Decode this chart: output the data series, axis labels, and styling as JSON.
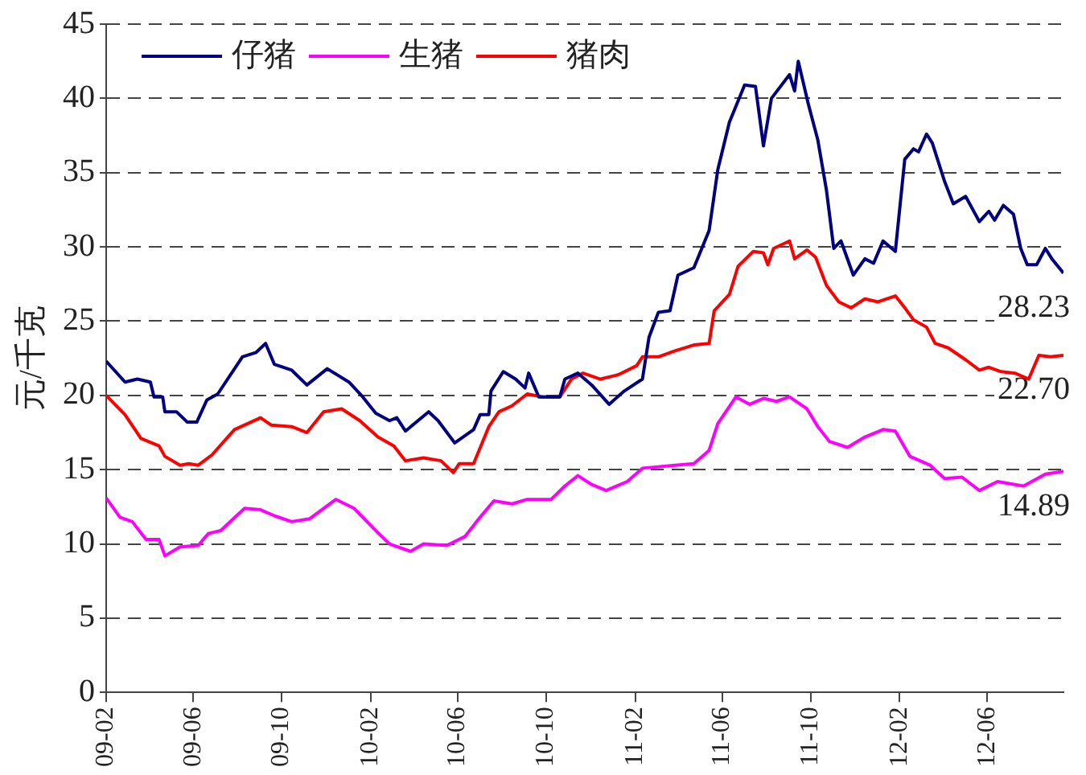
{
  "chart_data": {
    "type": "line",
    "ylabel": "元/千克",
    "xlim": [
      "2009-02-01",
      "2012-09-14"
    ],
    "ylim": [
      0,
      45
    ],
    "yticks": [
      0,
      5,
      10,
      15,
      20,
      25,
      30,
      35,
      40,
      45
    ],
    "xticks": [
      {
        "value": "2009-02",
        "label": "09-02"
      },
      {
        "value": "2009-06",
        "label": "09-06"
      },
      {
        "value": "2009-10",
        "label": "09-10"
      },
      {
        "value": "2010-02",
        "label": "10-02"
      },
      {
        "value": "2010-06",
        "label": "10-06"
      },
      {
        "value": "2010-10",
        "label": "10-10"
      },
      {
        "value": "2011-02",
        "label": "11-02"
      },
      {
        "value": "2011-06",
        "label": "11-06"
      },
      {
        "value": "2011-10",
        "label": "11-10"
      },
      {
        "value": "2012-02",
        "label": "12-02"
      },
      {
        "value": "2012-06",
        "label": "12-06"
      }
    ],
    "grid": "y",
    "legend": "top left",
    "marker": "none",
    "line_style": "solid",
    "series": [
      {
        "name": "仔猪",
        "color": "#000080",
        "x": [
          "2009-02-01",
          "2009-02-27",
          "2009-03-16",
          "2009-04-03",
          "2009-04-08",
          "2009-04-20",
          "2009-04-23",
          "2009-05-09",
          "2009-05-24",
          "2009-06-06",
          "2009-06-20",
          "2009-07-05",
          "2009-08-08",
          "2009-08-27",
          "2009-09-09",
          "2009-09-21",
          "2009-10-15",
          "2009-11-05",
          "2009-12-03",
          "2010-01-02",
          "2010-01-21",
          "2010-02-08",
          "2010-02-27",
          "2010-03-09",
          "2010-03-21",
          "2010-04-22",
          "2010-05-05",
          "2010-05-28",
          "2010-06-23",
          "2010-07-02",
          "2010-07-14",
          "2010-07-17",
          "2010-08-03",
          "2010-08-20",
          "2010-09-02",
          "2010-09-07",
          "2010-09-21",
          "2010-10-20",
          "2010-10-27",
          "2010-11-14",
          "2010-12-03",
          "2010-12-27",
          "2011-01-17",
          "2011-02-11",
          "2011-02-20",
          "2011-03-05",
          "2011-03-21",
          "2011-04-01",
          "2011-04-23",
          "2011-05-14",
          "2011-05-26",
          "2011-06-11",
          "2011-07-02",
          "2011-07-17",
          "2011-07-28",
          "2011-08-08",
          "2011-09-02",
          "2011-09-09",
          "2011-09-14",
          "2011-09-28",
          "2011-10-11",
          "2011-10-23",
          "2011-11-02",
          "2011-11-12",
          "2011-11-29",
          "2011-12-15",
          "2011-12-27",
          "2012-01-09",
          "2012-01-26",
          "2012-02-08",
          "2012-02-20",
          "2012-02-27",
          "2012-03-09",
          "2012-03-17",
          "2012-04-03",
          "2012-04-15",
          "2012-05-02",
          "2012-05-21",
          "2012-06-03",
          "2012-06-11",
          "2012-06-23",
          "2012-07-07",
          "2012-07-17",
          "2012-07-26",
          "2012-08-08",
          "2012-08-20",
          "2012-08-29",
          "2012-09-14"
        ],
        "values": [
          22.3,
          20.9,
          21.1,
          20.9,
          19.9,
          19.9,
          18.9,
          18.9,
          18.2,
          18.2,
          19.7,
          20.1,
          22.6,
          22.9,
          23.5,
          22.1,
          21.7,
          20.7,
          21.8,
          20.9,
          19.9,
          18.8,
          18.3,
          18.5,
          17.6,
          18.9,
          18.3,
          16.8,
          17.7,
          18.7,
          18.7,
          20.3,
          21.6,
          21.1,
          20.5,
          21.5,
          19.9,
          19.9,
          21.1,
          21.5,
          20.7,
          19.4,
          20.3,
          21.1,
          23.9,
          25.6,
          25.7,
          28.1,
          28.6,
          31.1,
          35.2,
          38.4,
          40.9,
          40.8,
          36.8,
          40.0,
          41.6,
          40.5,
          42.5,
          39.6,
          37.2,
          33.8,
          29.9,
          30.4,
          28.1,
          29.2,
          28.9,
          30.4,
          29.7,
          35.9,
          36.6,
          36.4,
          37.6,
          37.0,
          34.4,
          32.9,
          33.4,
          31.7,
          32.4,
          31.8,
          32.8,
          32.2,
          29.9,
          28.8,
          28.8,
          29.9,
          29.2,
          28.23
        ]
      },
      {
        "name": "生猪",
        "color": "#ff00ff",
        "x": [
          "2009-02-01",
          "2009-02-20",
          "2009-03-09",
          "2009-03-28",
          "2009-04-15",
          "2009-04-23",
          "2009-05-14",
          "2009-06-08",
          "2009-06-22",
          "2009-07-09",
          "2009-08-11",
          "2009-09-02",
          "2009-09-21",
          "2009-10-15",
          "2009-11-09",
          "2009-12-15",
          "2010-01-09",
          "2010-02-08",
          "2010-02-27",
          "2010-03-28",
          "2010-04-15",
          "2010-05-17",
          "2010-06-11",
          "2010-07-02",
          "2010-07-21",
          "2010-08-15",
          "2010-09-05",
          "2010-10-08",
          "2010-10-27",
          "2010-11-14",
          "2010-12-03",
          "2010-12-23",
          "2011-01-21",
          "2011-02-11",
          "2011-03-28",
          "2011-04-23",
          "2011-05-14",
          "2011-05-26",
          "2011-06-20",
          "2011-07-09",
          "2011-07-28",
          "2011-08-15",
          "2011-09-02",
          "2011-09-26",
          "2011-10-11",
          "2011-10-27",
          "2011-11-21",
          "2011-12-15",
          "2012-01-09",
          "2012-01-26",
          "2012-02-15",
          "2012-03-14",
          "2012-04-03",
          "2012-04-27",
          "2012-05-21",
          "2012-06-15",
          "2012-07-21",
          "2012-08-20",
          "2012-09-14"
        ],
        "values": [
          13.1,
          11.8,
          11.5,
          10.3,
          10.3,
          9.2,
          9.8,
          9.9,
          10.7,
          10.9,
          12.4,
          12.3,
          11.9,
          11.5,
          11.7,
          13.0,
          12.4,
          10.9,
          10.0,
          9.5,
          10.0,
          9.9,
          10.5,
          11.8,
          12.9,
          12.7,
          13.0,
          13.0,
          13.9,
          14.6,
          14.0,
          13.6,
          14.2,
          15.1,
          15.3,
          15.4,
          16.3,
          18.1,
          19.9,
          19.4,
          19.8,
          19.6,
          19.9,
          19.1,
          17.9,
          16.9,
          16.5,
          17.2,
          17.7,
          17.6,
          15.9,
          15.3,
          14.4,
          14.5,
          13.6,
          14.2,
          13.9,
          14.7,
          14.89
        ]
      },
      {
        "name": "猪肉",
        "color": "#ff0000",
        "x": [
          "2009-02-01",
          "2009-02-27",
          "2009-03-21",
          "2009-04-15",
          "2009-04-23",
          "2009-05-14",
          "2009-05-26",
          "2009-06-08",
          "2009-06-27",
          "2009-07-28",
          "2009-09-02",
          "2009-09-17",
          "2009-10-15",
          "2009-11-05",
          "2009-11-28",
          "2009-12-23",
          "2010-01-17",
          "2010-02-11",
          "2010-03-05",
          "2010-03-21",
          "2010-04-15",
          "2010-05-09",
          "2010-05-26",
          "2010-06-03",
          "2010-06-23",
          "2010-07-14",
          "2010-07-28",
          "2010-08-15",
          "2010-09-05",
          "2010-09-26",
          "2010-10-20",
          "2010-11-05",
          "2010-11-21",
          "2010-12-15",
          "2011-01-09",
          "2011-02-03",
          "2011-02-11",
          "2011-03-05",
          "2011-03-28",
          "2011-04-23",
          "2011-05-14",
          "2011-05-21",
          "2011-06-11",
          "2011-06-23",
          "2011-07-14",
          "2011-07-28",
          "2011-08-03",
          "2011-08-11",
          "2011-09-02",
          "2011-09-09",
          "2011-09-26",
          "2011-10-08",
          "2011-10-23",
          "2011-11-09",
          "2011-11-26",
          "2011-12-15",
          "2012-01-02",
          "2012-01-26",
          "2012-02-08",
          "2012-02-20",
          "2012-03-09",
          "2012-03-21",
          "2012-04-08",
          "2012-05-02",
          "2012-05-21",
          "2012-06-03",
          "2012-06-20",
          "2012-07-09",
          "2012-07-28",
          "2012-08-11",
          "2012-08-27",
          "2012-09-14"
        ],
        "values": [
          20.0,
          18.7,
          17.1,
          16.6,
          15.9,
          15.3,
          15.4,
          15.3,
          16.0,
          17.7,
          18.5,
          18.0,
          17.9,
          17.5,
          18.9,
          19.1,
          18.3,
          17.2,
          16.6,
          15.6,
          15.8,
          15.6,
          14.8,
          15.4,
          15.4,
          17.9,
          18.9,
          19.3,
          20.1,
          19.9,
          19.9,
          21.1,
          21.5,
          21.1,
          21.4,
          22.0,
          22.6,
          22.6,
          23.0,
          23.4,
          23.5,
          25.7,
          26.8,
          28.7,
          29.7,
          29.6,
          28.8,
          29.9,
          30.4,
          29.2,
          29.8,
          29.3,
          27.4,
          26.3,
          25.9,
          26.5,
          26.3,
          26.7,
          25.9,
          25.1,
          24.6,
          23.5,
          23.2,
          22.4,
          21.7,
          21.9,
          21.6,
          21.5,
          21.1,
          22.7,
          22.6,
          22.7
        ]
      }
    ],
    "annotations": [
      {
        "text": "28.23",
        "x": "2012-09-14",
        "y": 28.23
      },
      {
        "text": "22.70",
        "x": "2012-09-14",
        "y": 22.7
      },
      {
        "text": "14.89",
        "x": "2012-09-14",
        "y": 14.89
      }
    ]
  }
}
